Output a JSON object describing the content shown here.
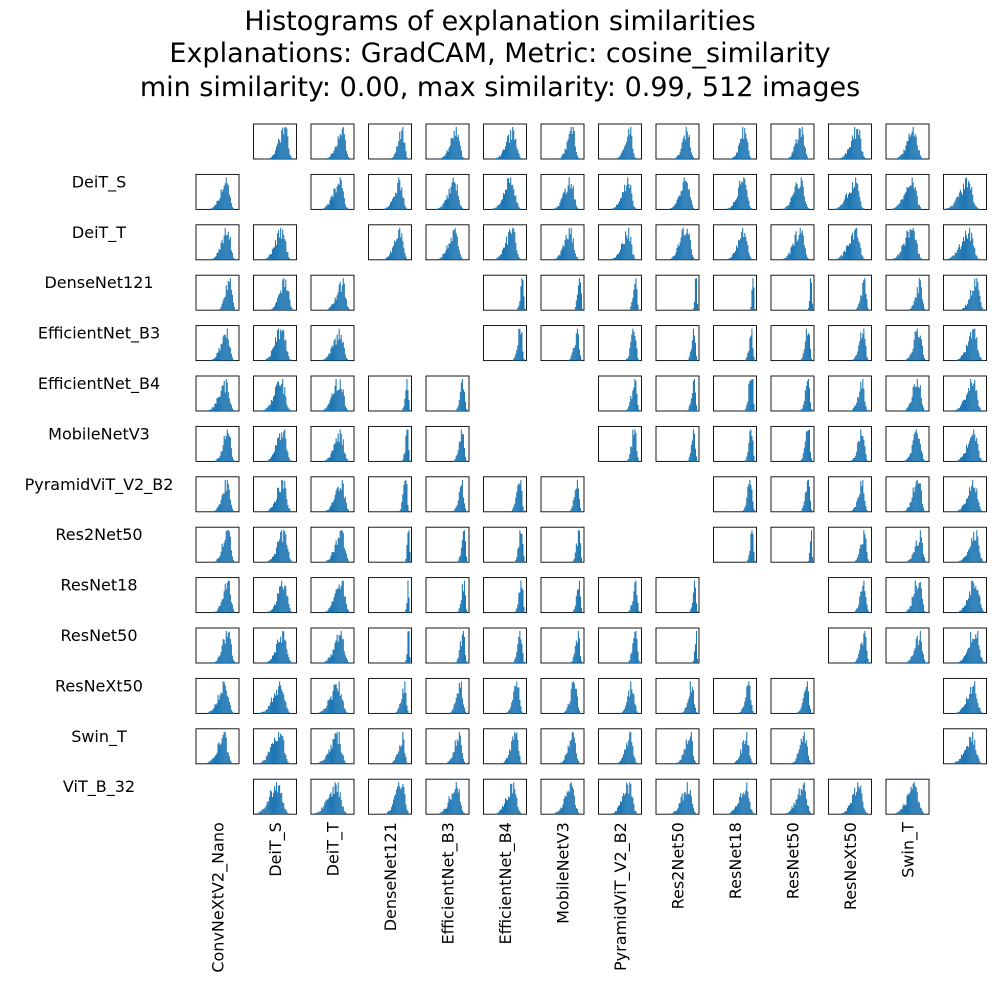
{
  "chart_data": {
    "type": "bar",
    "title_lines": [
      "Histograms of explanation similarities",
      "Explanations: GradCAM, Metric: cosine_similarity",
      "min similarity: 0.00, max similarity: 0.99, 512 images"
    ],
    "row_labels": [
      "DeiT_S",
      "DeiT_T",
      "DenseNet121",
      "EfficientNet_B3",
      "EfficientNet_B4",
      "MobileNetV3",
      "PyramidViT_V2_B2",
      "Res2Net50",
      "ResNet18",
      "ResNet50",
      "ResNeXt50",
      "Swin_T",
      "ViT_B_32"
    ],
    "column_labels": [
      "ConvNeXtV2_Nano",
      "DeiT_S",
      "DeiT_T",
      "DenseNet121",
      "EfficientNet_B3",
      "EfficientNet_B4",
      "MobileNetV3",
      "PyramidViT_V2_B2",
      "Res2Net50",
      "ResNet18",
      "ResNet50",
      "ResNeXt50",
      "Swin_T"
    ],
    "grid_row_models": [
      "ConvNeXtV2_Nano",
      "DeiT_S",
      "DeiT_T",
      "DenseNet121",
      "EfficientNet_B3",
      "EfficientNet_B4",
      "MobileNetV3",
      "PyramidViT_V2_B2",
      "Res2Net50",
      "ResNet18",
      "ResNet50",
      "ResNeXt50",
      "Swin_T",
      "ViT_B_32"
    ],
    "grid_column_models": [
      "ConvNeXtV2_Nano",
      "DeiT_S",
      "DeiT_T",
      "DenseNet121",
      "EfficientNet_B3",
      "EfficientNet_B4",
      "MobileNetV3",
      "PyramidViT_V2_B2",
      "Res2Net50",
      "ResNet18",
      "ResNet50",
      "ResNeXt50",
      "Swin_T",
      "ViT_B_32"
    ],
    "bar_color": "#1f77b4",
    "similarity_range": [
      0.0,
      0.99
    ],
    "image_count": 512,
    "histogram_bins": 40,
    "histogram_peak_similarity": [
      [
        null,
        0.74,
        0.74,
        0.8,
        0.72,
        0.7,
        0.74,
        0.74,
        0.75,
        0.74,
        0.72,
        0.68,
        0.66,
        0.62
      ],
      [
        0.72,
        null,
        0.68,
        0.74,
        0.68,
        0.66,
        0.7,
        0.7,
        0.72,
        0.72,
        0.7,
        0.62,
        0.62,
        0.58
      ],
      [
        0.74,
        0.68,
        null,
        0.74,
        0.68,
        0.68,
        0.7,
        0.7,
        0.72,
        0.72,
        0.7,
        0.64,
        0.62,
        0.6
      ],
      [
        0.8,
        0.76,
        0.74,
        null,
        0.9,
        0.92,
        0.92,
        0.88,
        0.95,
        0.94,
        0.95,
        0.85,
        0.8,
        0.78
      ],
      [
        0.72,
        0.68,
        0.68,
        0.9,
        null,
        0.88,
        0.86,
        0.85,
        0.9,
        0.9,
        0.88,
        0.82,
        0.78,
        0.72
      ],
      [
        0.7,
        0.66,
        0.68,
        0.92,
        0.88,
        null,
        0.86,
        0.86,
        0.9,
        0.9,
        0.88,
        0.8,
        0.76,
        0.7
      ],
      [
        0.76,
        0.7,
        0.7,
        0.92,
        0.86,
        0.86,
        null,
        0.86,
        0.9,
        0.9,
        0.88,
        0.8,
        0.76,
        0.72
      ],
      [
        0.74,
        0.7,
        0.72,
        0.88,
        0.85,
        0.86,
        0.86,
        null,
        0.9,
        0.88,
        0.88,
        0.8,
        0.76,
        0.72
      ],
      [
        0.76,
        0.72,
        0.72,
        0.95,
        0.9,
        0.9,
        0.9,
        0.9,
        null,
        0.92,
        0.95,
        0.85,
        0.8,
        0.76
      ],
      [
        0.76,
        0.72,
        0.72,
        0.94,
        0.9,
        0.9,
        0.9,
        0.88,
        0.92,
        null,
        0.92,
        0.84,
        0.78,
        0.76
      ],
      [
        0.76,
        0.7,
        0.7,
        0.95,
        0.88,
        0.88,
        0.88,
        0.88,
        0.95,
        0.92,
        null,
        0.85,
        0.8,
        0.76
      ],
      [
        0.68,
        0.64,
        0.64,
        0.85,
        0.82,
        0.8,
        0.8,
        0.8,
        0.85,
        0.84,
        0.85,
        null,
        0.76,
        0.72
      ],
      [
        0.66,
        0.62,
        0.62,
        0.8,
        0.78,
        0.76,
        0.76,
        0.76,
        0.8,
        0.78,
        0.8,
        0.76,
        null,
        0.68
      ],
      [
        0.62,
        0.58,
        0.6,
        0.78,
        0.72,
        0.7,
        0.72,
        0.72,
        0.76,
        0.76,
        0.76,
        0.72,
        0.68,
        null
      ]
    ],
    "histogram_spread": [
      [
        null,
        0.14,
        0.14,
        0.1,
        0.14,
        0.16,
        0.12,
        0.12,
        0.12,
        0.12,
        0.13,
        0.16,
        0.16,
        0.2
      ],
      [
        0.14,
        null,
        0.16,
        0.14,
        0.16,
        0.17,
        0.15,
        0.15,
        0.15,
        0.15,
        0.16,
        0.18,
        0.18,
        0.2
      ],
      [
        0.14,
        0.16,
        null,
        0.14,
        0.16,
        0.16,
        0.15,
        0.15,
        0.15,
        0.15,
        0.16,
        0.18,
        0.18,
        0.2
      ],
      [
        0.1,
        0.14,
        0.14,
        null,
        0.06,
        0.05,
        0.05,
        0.06,
        0.03,
        0.03,
        0.03,
        0.08,
        0.1,
        0.14
      ],
      [
        0.14,
        0.16,
        0.16,
        0.06,
        null,
        0.07,
        0.08,
        0.08,
        0.06,
        0.06,
        0.07,
        0.1,
        0.12,
        0.16
      ],
      [
        0.16,
        0.17,
        0.16,
        0.05,
        0.07,
        null,
        0.08,
        0.08,
        0.06,
        0.06,
        0.07,
        0.1,
        0.12,
        0.16
      ],
      [
        0.12,
        0.15,
        0.15,
        0.05,
        0.08,
        0.08,
        null,
        0.07,
        0.06,
        0.06,
        0.07,
        0.1,
        0.12,
        0.16
      ],
      [
        0.12,
        0.15,
        0.15,
        0.06,
        0.08,
        0.08,
        0.07,
        null,
        0.06,
        0.07,
        0.07,
        0.1,
        0.12,
        0.16
      ],
      [
        0.12,
        0.15,
        0.15,
        0.03,
        0.06,
        0.06,
        0.06,
        0.06,
        null,
        0.05,
        0.03,
        0.09,
        0.12,
        0.16
      ],
      [
        0.12,
        0.15,
        0.15,
        0.03,
        0.06,
        0.06,
        0.06,
        0.07,
        0.05,
        null,
        0.05,
        0.09,
        0.12,
        0.16
      ],
      [
        0.13,
        0.16,
        0.16,
        0.03,
        0.07,
        0.07,
        0.07,
        0.07,
        0.03,
        0.05,
        null,
        0.09,
        0.12,
        0.16
      ],
      [
        0.16,
        0.18,
        0.18,
        0.08,
        0.1,
        0.1,
        0.1,
        0.1,
        0.09,
        0.09,
        0.09,
        null,
        0.13,
        0.16
      ],
      [
        0.16,
        0.18,
        0.18,
        0.1,
        0.12,
        0.12,
        0.12,
        0.12,
        0.12,
        0.12,
        0.12,
        0.13,
        null,
        0.18
      ],
      [
        0.2,
        0.2,
        0.2,
        0.14,
        0.16,
        0.16,
        0.16,
        0.16,
        0.16,
        0.16,
        0.16,
        0.16,
        0.18,
        null
      ]
    ],
    "empty_cells": [
      [
        0,
        0
      ],
      [
        1,
        1
      ],
      [
        2,
        2
      ],
      [
        3,
        3
      ],
      [
        4,
        4
      ],
      [
        5,
        5
      ],
      [
        6,
        6
      ],
      [
        7,
        7
      ],
      [
        8,
        8
      ],
      [
        9,
        9
      ],
      [
        10,
        10
      ],
      [
        11,
        11
      ],
      [
        12,
        12
      ],
      [
        13,
        13
      ],
      [
        3,
        4
      ],
      [
        4,
        3
      ],
      [
        5,
        6
      ],
      [
        6,
        5
      ],
      [
        7,
        8
      ],
      [
        8,
        7
      ],
      [
        9,
        10
      ],
      [
        10,
        9
      ],
      [
        11,
        12
      ],
      [
        12,
        11
      ],
      [
        13,
        0
      ],
      [
        0,
        13
      ]
    ],
    "grid": false,
    "ticks": false
  }
}
